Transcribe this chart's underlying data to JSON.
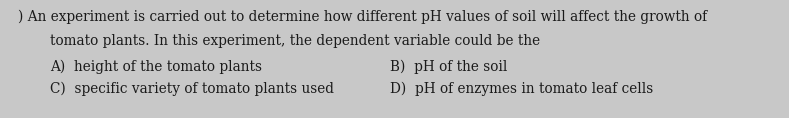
{
  "background_color": "#c8c8c8",
  "text_color": "#1a1a1a",
  "question_prefix": ") An experiment is carried out to determine how different pH values of soil will affect the growth of",
  "question_line2": "tomato plants. In this experiment, the dependent variable could be the",
  "option_A": "A)  height of the tomato plants",
  "option_B": "B)  pH of the soil",
  "option_C": "C)  specific variety of tomato plants used",
  "option_D": "D)  pH of enzymes in tomato leaf cells",
  "fontsize_question": 9.8,
  "fontsize_options": 9.8,
  "fig_width": 7.89,
  "fig_height": 1.18,
  "dpi": 100
}
